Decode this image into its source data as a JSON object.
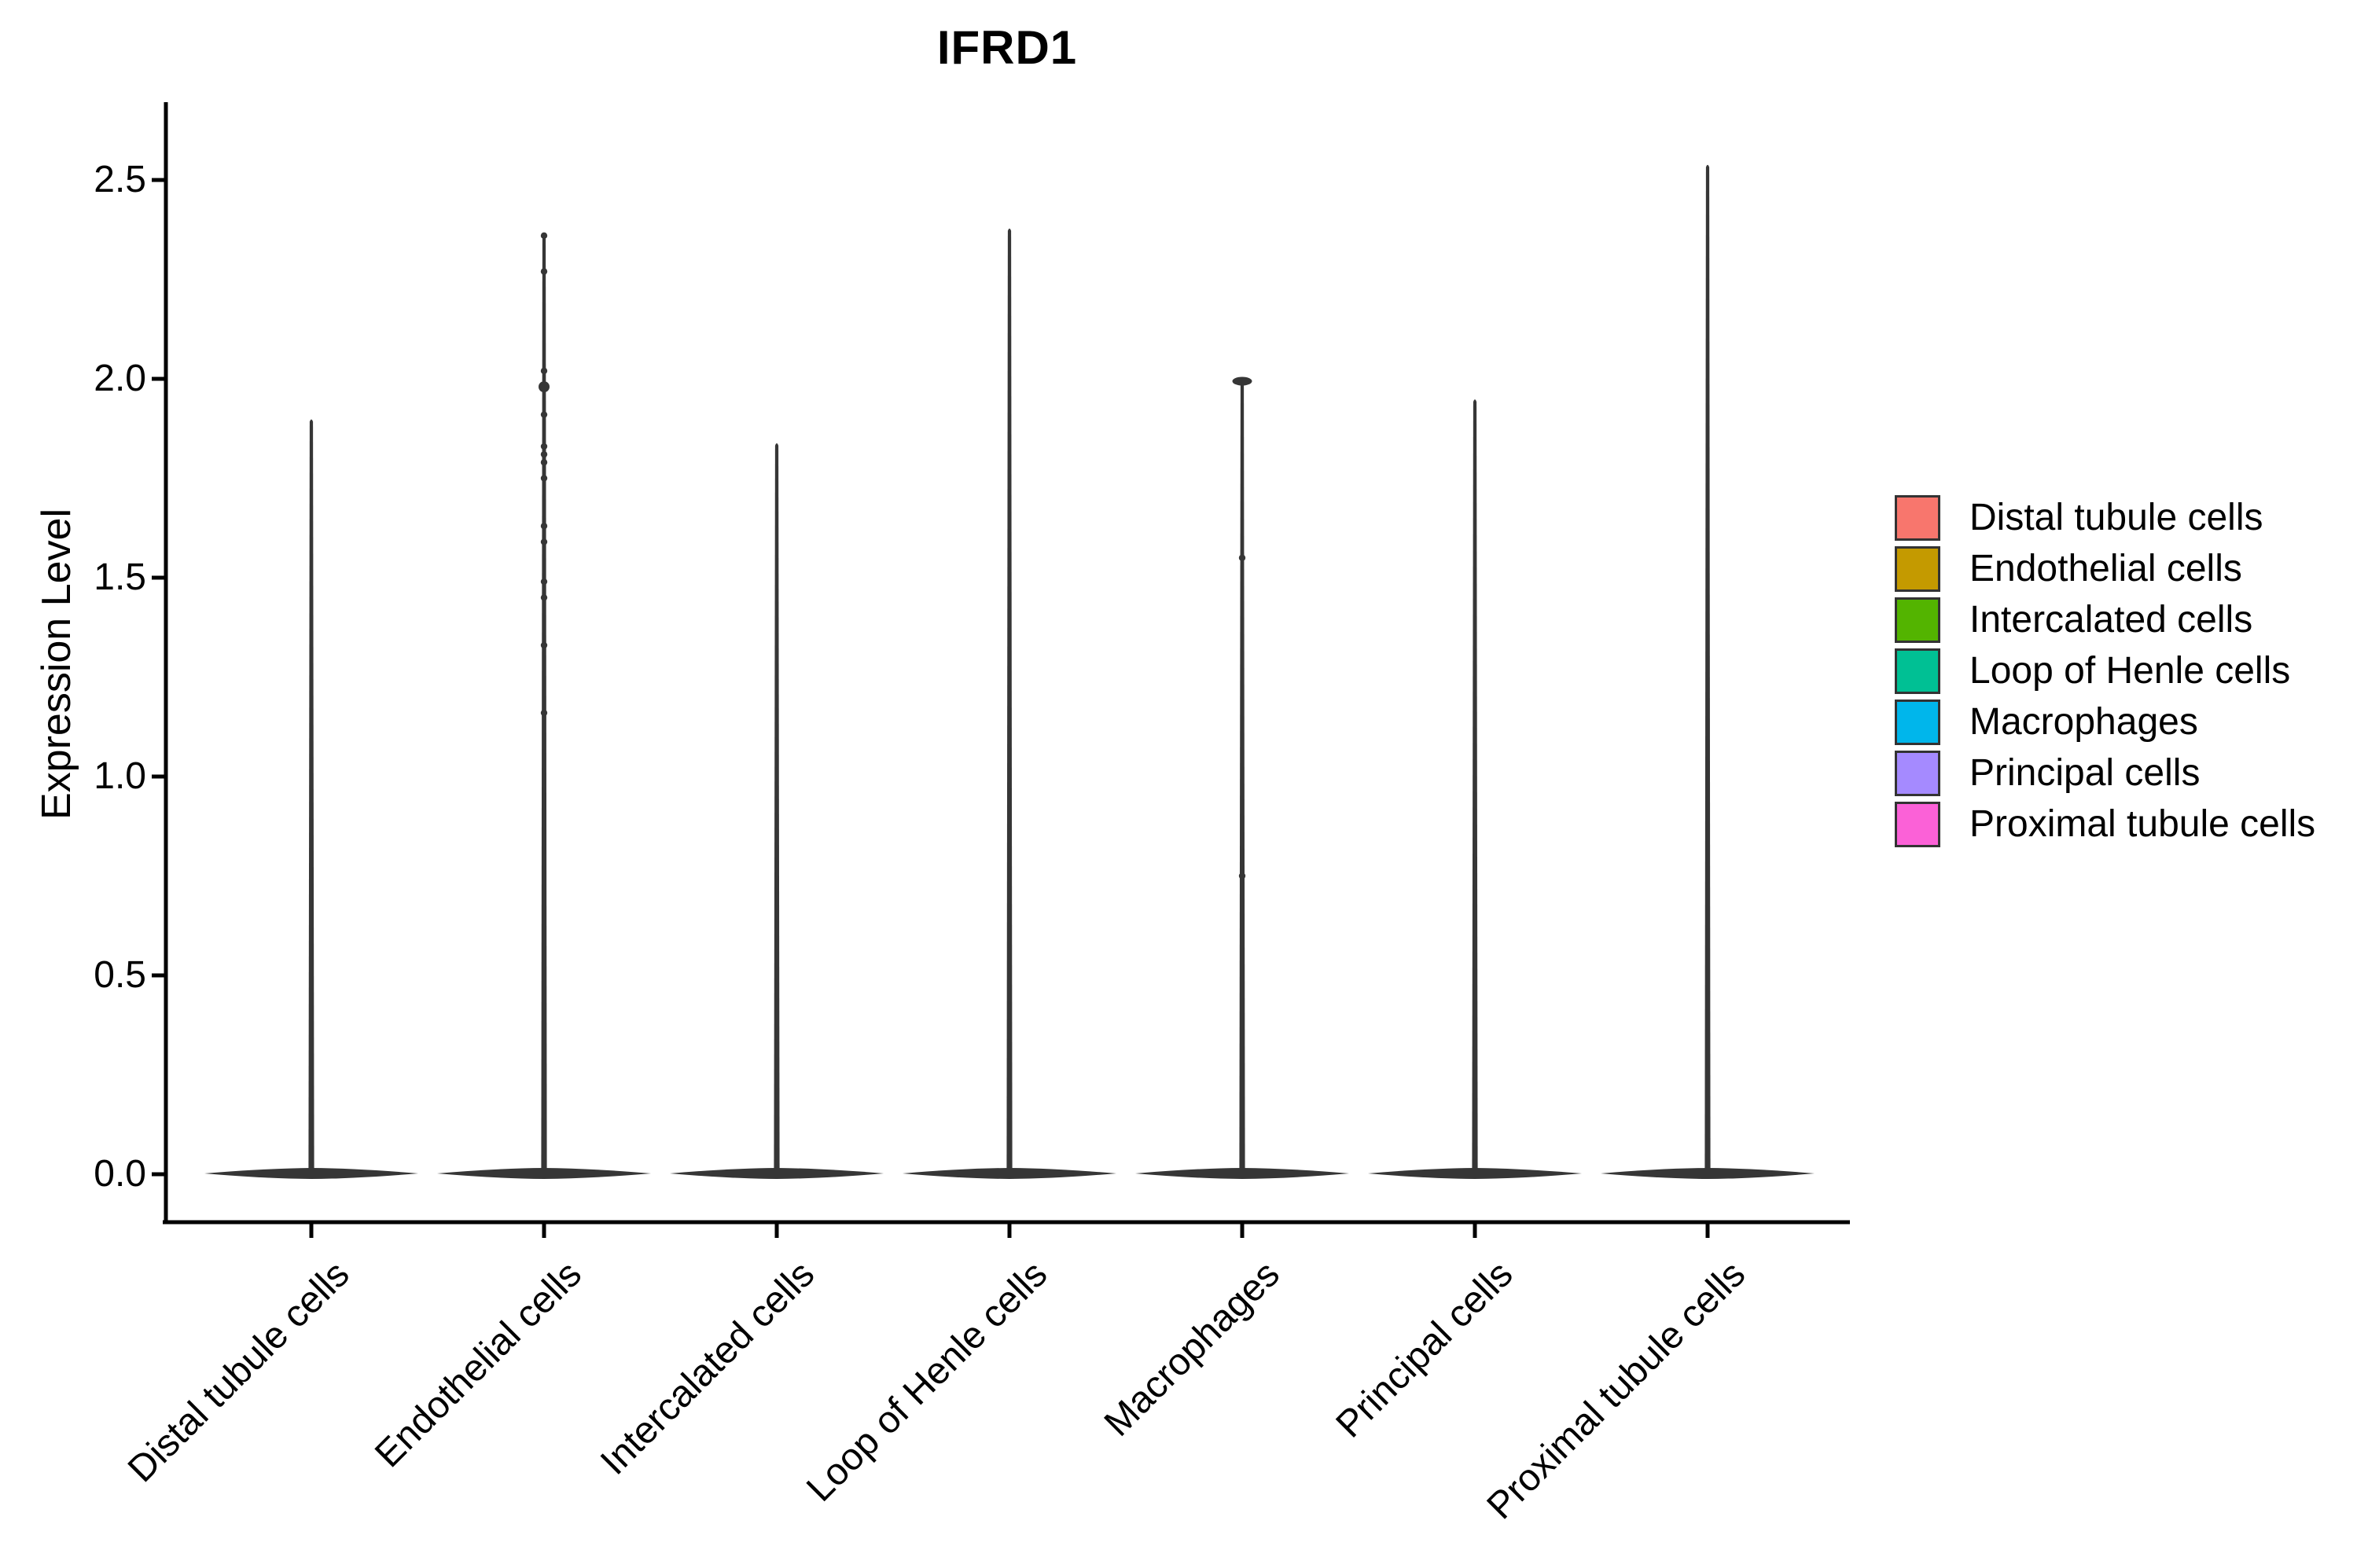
{
  "chart_data": {
    "type": "violin",
    "title": "IFRD1",
    "ylabel": "Expression Level",
    "xlabel": "",
    "categories": [
      "Distal tubule cells",
      "Endothelial cells",
      "Intercalated cells",
      "Loop of Henle cells",
      "Macrophages",
      "Principal cells",
      "Proximal tubule cells"
    ],
    "colors": [
      "#F8766D",
      "#C49A00",
      "#53B400",
      "#00C094",
      "#00B6EB",
      "#A58AFF",
      "#FB61D7"
    ],
    "ytick_labels": [
      "2.5",
      "2.0",
      "1.5",
      "1.0",
      "0.5",
      "0.0"
    ],
    "ytick_values": [
      2.5,
      2.0,
      1.5,
      1.0,
      0.5,
      0.0
    ],
    "ylim": [
      0,
      2.7
    ],
    "grid": false,
    "legend_position": "right",
    "series": [
      {
        "name": "Distal tubule cells",
        "max": 1.9,
        "bulk_at": 0.0,
        "points": [],
        "big_points": [],
        "top_cap": false
      },
      {
        "name": "Endothelial cells",
        "max": 2.36,
        "bulk_at": 0.0,
        "points": [
          2.36,
          2.27,
          2.02,
          1.91,
          1.83,
          1.81,
          1.79,
          1.75,
          1.63,
          1.59,
          1.49,
          1.45,
          1.33,
          1.16
        ],
        "big_points": [
          1.98
        ],
        "top_cap": false
      },
      {
        "name": "Intercalated cells",
        "max": 1.84,
        "bulk_at": 0.0,
        "points": [],
        "big_points": [],
        "top_cap": false
      },
      {
        "name": "Loop of Henle cells",
        "max": 2.38,
        "bulk_at": 0.0,
        "points": [],
        "big_points": [],
        "top_cap": false
      },
      {
        "name": "Macrophages",
        "max": 2.0,
        "bulk_at": 0.0,
        "points": [
          1.55,
          0.75
        ],
        "big_points": [],
        "top_cap": true
      },
      {
        "name": "Principal cells",
        "max": 1.95,
        "bulk_at": 0.0,
        "points": [],
        "big_points": [],
        "top_cap": false
      },
      {
        "name": "Proximal tubule cells",
        "max": 2.54,
        "bulk_at": 0.0,
        "points": [],
        "big_points": [],
        "top_cap": false
      }
    ]
  },
  "legend": {
    "items": [
      {
        "label": "Distal tubule cells"
      },
      {
        "label": "Endothelial cells"
      },
      {
        "label": "Intercalated cells"
      },
      {
        "label": "Loop of Henle cells"
      },
      {
        "label": "Macrophages"
      },
      {
        "label": "Principal cells"
      },
      {
        "label": "Proximal tubule cells"
      }
    ]
  }
}
